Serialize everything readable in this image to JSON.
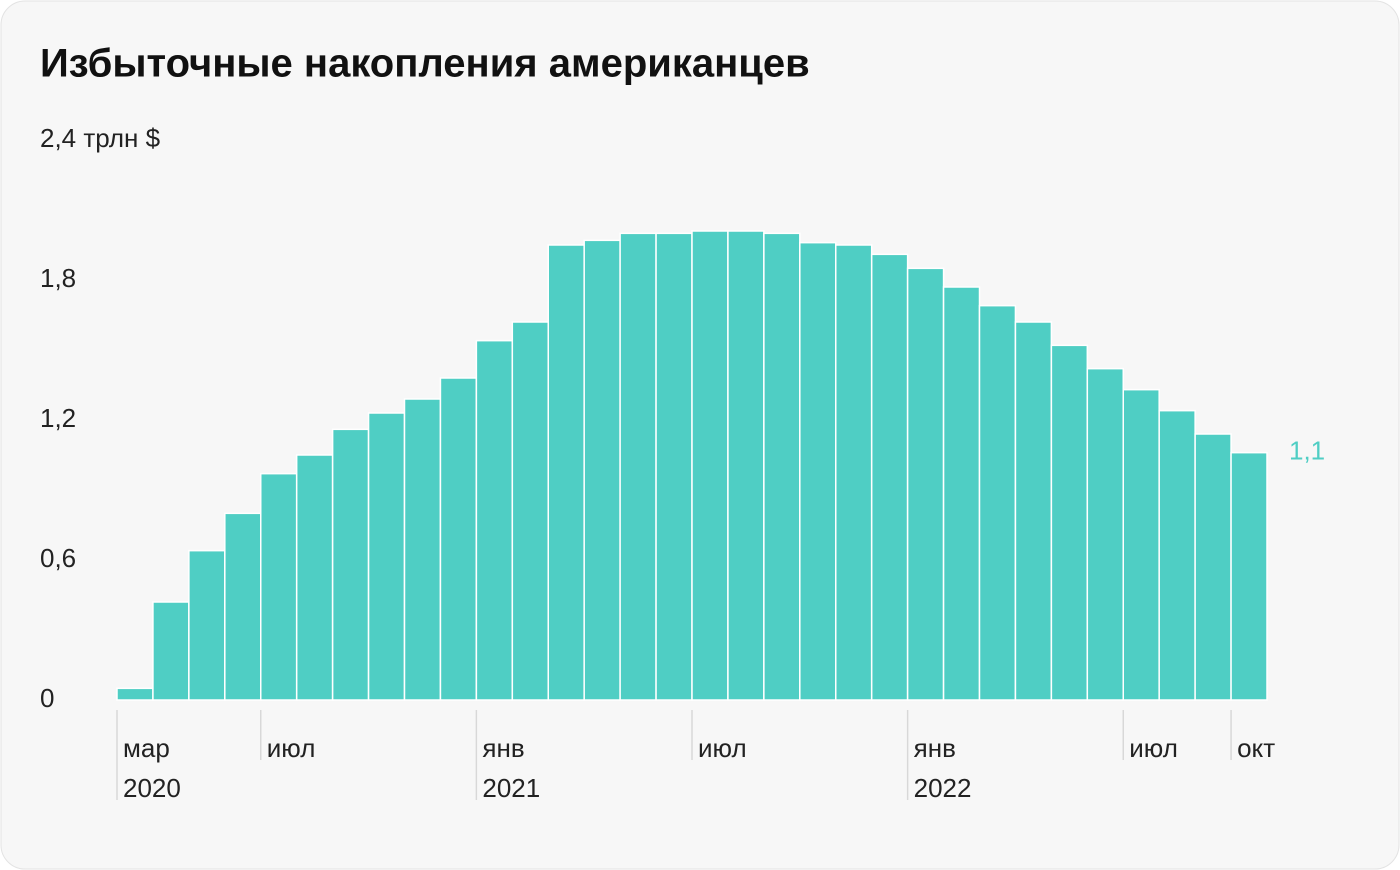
{
  "chart_data": {
    "type": "bar",
    "title": "Избыточные накопления американцев",
    "categories": [
      "мар",
      null,
      null,
      null,
      "июл",
      null,
      null,
      null,
      null,
      null,
      "янв",
      null,
      null,
      null,
      null,
      null,
      "июл",
      null,
      null,
      null,
      null,
      null,
      "янв",
      null,
      null,
      null,
      null,
      null,
      "июл",
      null,
      null,
      "окт"
    ],
    "category_years": [
      "2020",
      null,
      null,
      null,
      null,
      null,
      null,
      null,
      null,
      null,
      "2021",
      null,
      null,
      null,
      null,
      null,
      null,
      null,
      null,
      null,
      null,
      null,
      "2022",
      null,
      null,
      null,
      null,
      null,
      null,
      null,
      null,
      null
    ],
    "values": [
      0.05,
      0.42,
      0.64,
      0.8,
      0.97,
      1.05,
      1.16,
      1.23,
      1.29,
      1.38,
      1.54,
      1.62,
      1.95,
      1.97,
      2.0,
      2.0,
      2.01,
      2.01,
      2.0,
      1.96,
      1.95,
      1.91,
      1.85,
      1.77,
      1.69,
      1.62,
      1.52,
      1.42,
      1.33,
      1.24,
      1.14,
      1.06
    ],
    "value_labels": [
      null,
      null,
      null,
      null,
      null,
      null,
      null,
      null,
      null,
      null,
      null,
      null,
      null,
      null,
      null,
      null,
      null,
      null,
      null,
      null,
      null,
      null,
      null,
      null,
      null,
      null,
      null,
      null,
      null,
      null,
      null,
      "1,1"
    ],
    "color": "#4fcec4",
    "ylim": [
      0,
      2.4
    ],
    "yticks": [
      0,
      {
        "value": 0.6,
        "label": "0,6"
      },
      {
        "value": 1.2,
        "label": "1,2"
      },
      {
        "value": 1.8,
        "label": "1,8"
      },
      {
        "value": 2.4,
        "label": "2,4 трлн $"
      }
    ],
    "grid": false
  }
}
